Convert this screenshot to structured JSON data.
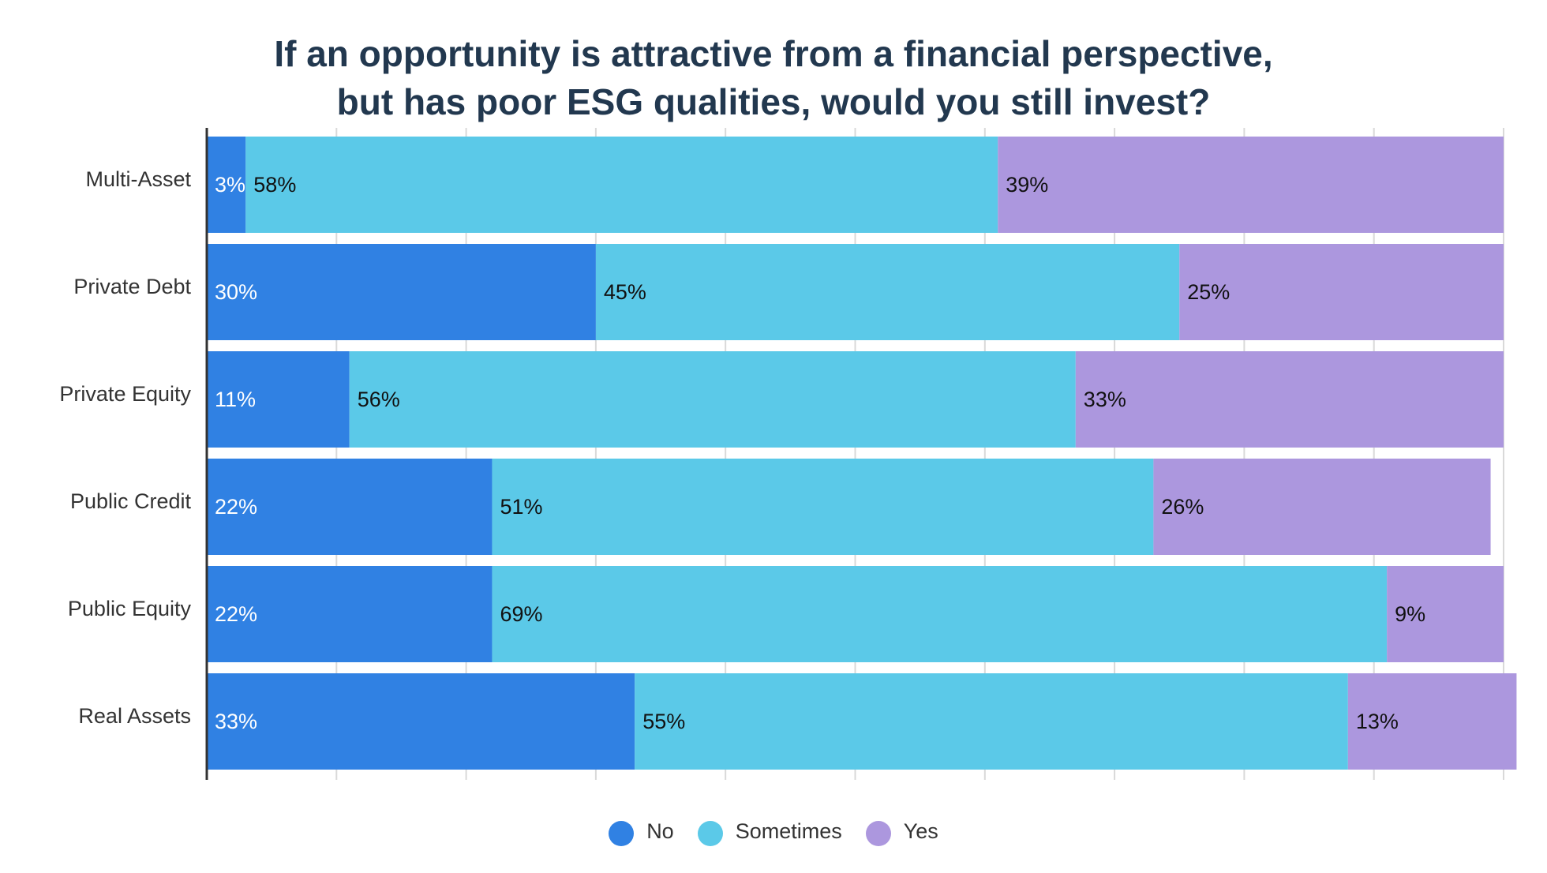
{
  "chart_data": {
    "type": "bar",
    "orientation": "horizontal",
    "stacked": true,
    "title_lines": [
      "If an opportunity is attractive from a financial perspective,",
      "but has poor ESG qualities, would you still invest?"
    ],
    "categories": [
      "Multi-Asset",
      "Private Debt",
      "Private Equity",
      "Public Credit",
      "Public Equity",
      "Real Assets"
    ],
    "series": [
      {
        "name": "No",
        "color": "#3081e3",
        "label_color": "#ffffff",
        "values": [
          3,
          30,
          11,
          22,
          22,
          33
        ]
      },
      {
        "name": "Sometimes",
        "color": "#5bc9e8",
        "label_color": "#111111",
        "values": [
          58,
          45,
          56,
          51,
          69,
          55
        ]
      },
      {
        "name": "Yes",
        "color": "#ac97de",
        "label_color": "#111111",
        "values": [
          39,
          25,
          33,
          26,
          9,
          13
        ]
      }
    ],
    "value_suffix": "%",
    "xlim": [
      0,
      100
    ],
    "grid": true,
    "legend_position": "bottom"
  }
}
